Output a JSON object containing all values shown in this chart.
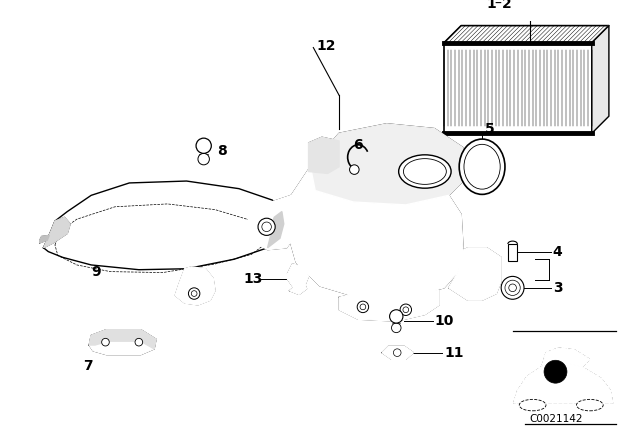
{
  "bg_color": "#ffffff",
  "line_color": "#000000",
  "diagram_code": "C0021142",
  "figsize": [
    6.4,
    4.48
  ],
  "dpi": 100
}
